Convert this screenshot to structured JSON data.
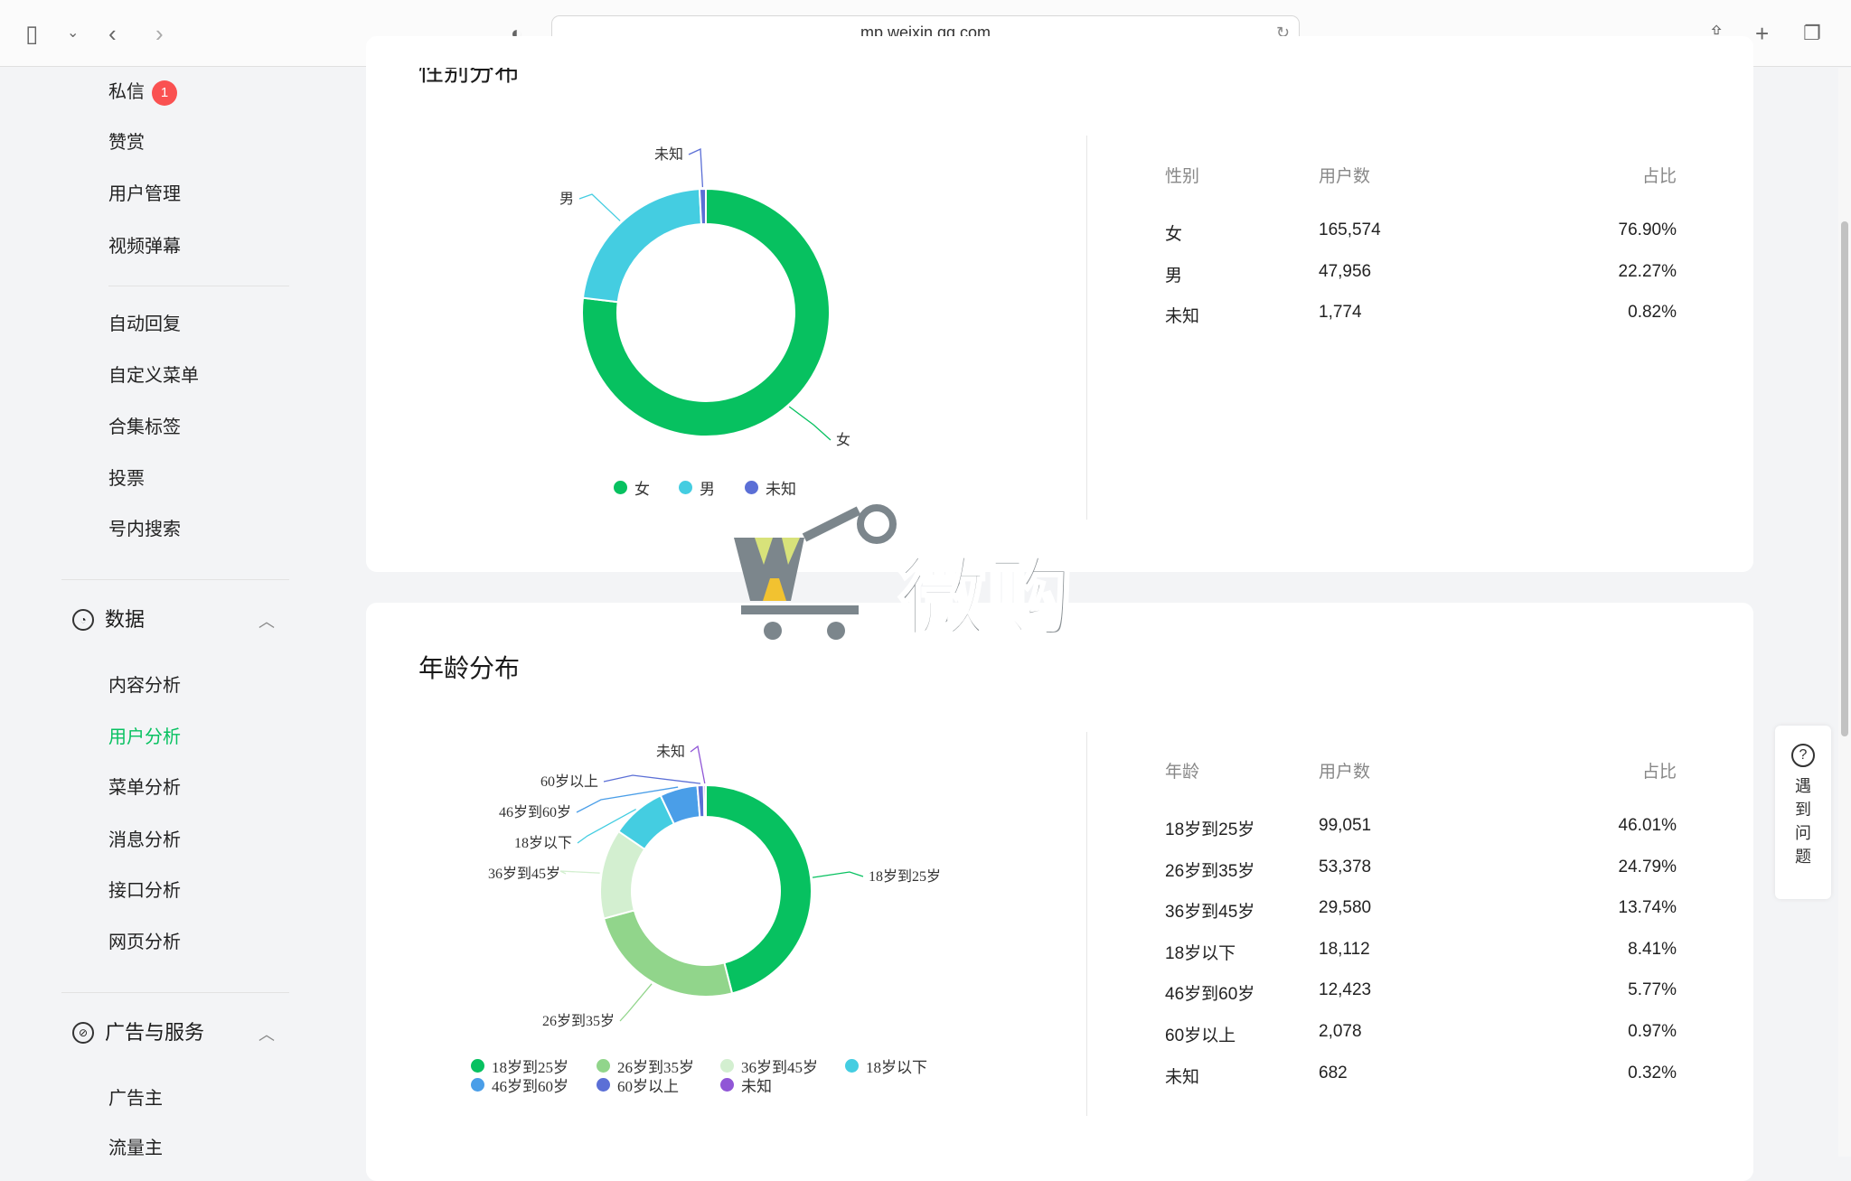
{
  "browser": {
    "url": "mp.weixin.qq.com"
  },
  "sidebar": {
    "items_top": [
      {
        "label": "私信",
        "badge": "1"
      },
      {
        "label": "赞赏"
      },
      {
        "label": "用户管理"
      },
      {
        "label": "视频弹幕"
      }
    ],
    "items_mid": [
      {
        "label": "自动回复"
      },
      {
        "label": "自定义菜单"
      },
      {
        "label": "合集标签"
      },
      {
        "label": "投票"
      },
      {
        "label": "号内搜索"
      }
    ],
    "data_section": {
      "label": "数据",
      "items": [
        {
          "label": "内容分析"
        },
        {
          "label": "用户分析",
          "active": true
        },
        {
          "label": "菜单分析"
        },
        {
          "label": "消息分析"
        },
        {
          "label": "接口分析"
        },
        {
          "label": "网页分析"
        }
      ]
    },
    "ad_section": {
      "label": "广告与服务",
      "items": [
        {
          "label": "广告主"
        },
        {
          "label": "流量主"
        }
      ]
    }
  },
  "gender": {
    "title": "性别分布",
    "headers": [
      "性别",
      "用户数",
      "占比"
    ],
    "rows": [
      [
        "女",
        "165,574",
        "76.90%"
      ],
      [
        "男",
        "47,956",
        "22.27%"
      ],
      [
        "未知",
        "1,774",
        "0.82%"
      ]
    ]
  },
  "age": {
    "title": "年龄分布",
    "headers": [
      "年龄",
      "用户数",
      "占比"
    ],
    "rows": [
      [
        "18岁到25岁",
        "99,051",
        "46.01%"
      ],
      [
        "26岁到35岁",
        "53,378",
        "24.79%"
      ],
      [
        "36岁到45岁",
        "29,580",
        "13.74%"
      ],
      [
        "18岁以下",
        "18,112",
        "8.41%"
      ],
      [
        "46岁到60岁",
        "12,423",
        "5.77%"
      ],
      [
        "60岁以上",
        "2,078",
        "0.97%"
      ],
      [
        "未知",
        "682",
        "0.32%"
      ]
    ]
  },
  "chart_data": [
    {
      "type": "pie",
      "donut": true,
      "categories": [
        "女",
        "男",
        "未知"
      ],
      "values": [
        76.9,
        22.27,
        0.82
      ],
      "colors": [
        "#07c160",
        "#44cde1",
        "#5b6fd6"
      ],
      "legend": "bottom"
    },
    {
      "type": "pie",
      "donut": true,
      "categories": [
        "18岁到25岁",
        "26岁到35岁",
        "36岁到45岁",
        "18岁以下",
        "46岁到60岁",
        "60岁以上",
        "未知"
      ],
      "values": [
        46.01,
        24.79,
        13.74,
        8.41,
        5.77,
        0.97,
        0.32
      ],
      "colors": [
        "#07c160",
        "#91d58b",
        "#d3efd0",
        "#44cde1",
        "#4a9ee8",
        "#5b6fd6",
        "#9056d6"
      ],
      "legend": "bottom"
    }
  ],
  "help": {
    "label": [
      "遇",
      "到",
      "问",
      "题"
    ]
  },
  "watermark": {
    "text": "微购"
  }
}
